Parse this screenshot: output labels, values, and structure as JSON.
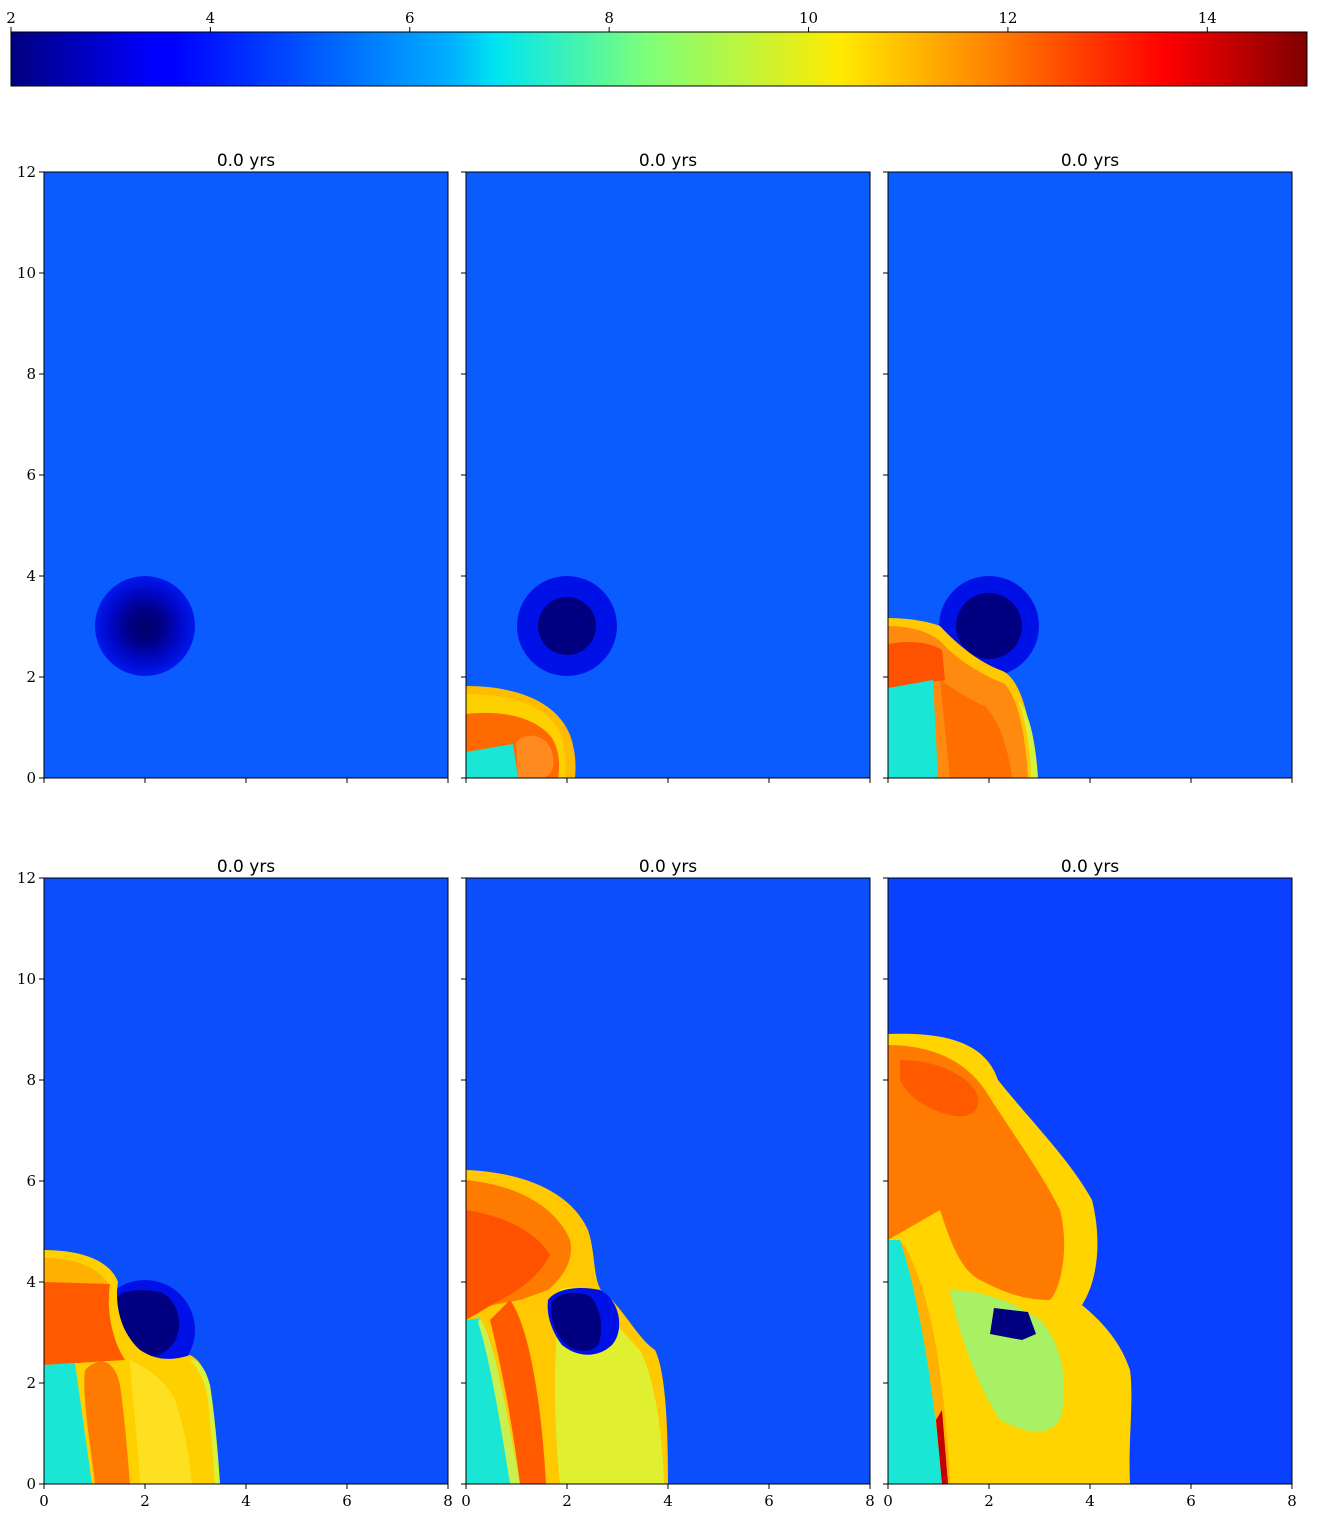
{
  "colorbar": {
    "tick_labels": [
      "2",
      "4",
      "6",
      "8",
      "10",
      "12",
      "14"
    ],
    "range": [
      2,
      15
    ],
    "colormap": "jet"
  },
  "panels": [
    {
      "title": "0.0 yrs"
    },
    {
      "title": "0.0 yrs"
    },
    {
      "title": "0.0 yrs"
    },
    {
      "title": "0.0 yrs"
    },
    {
      "title": "0.0 yrs"
    },
    {
      "title": "0.0 yrs"
    }
  ],
  "axes": {
    "x_ticks": [
      "0",
      "2",
      "4",
      "6",
      "8"
    ],
    "y_ticks": [
      "0",
      "2",
      "4",
      "6",
      "8",
      "10",
      "12"
    ],
    "xlim": [
      0,
      8
    ],
    "ylim": [
      0,
      12
    ]
  },
  "colors": {
    "background_field": "#0a5cff",
    "cloud_outer": "#0011e8",
    "cloud_core": "#000080",
    "shock_orange": "#ff6a00",
    "shock_yellow": "#ffd400",
    "shell_green_yellow": "#d7f23a",
    "jet_cyan": "#1ae6d6",
    "hot_red": "#c40000"
  }
}
